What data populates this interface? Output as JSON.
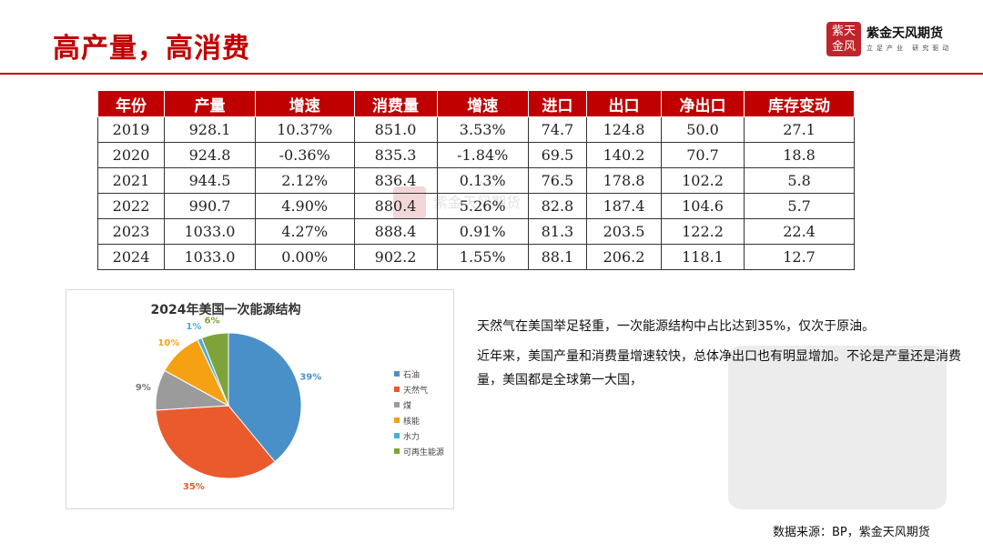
{
  "header": {
    "title": "高产量，高消费",
    "logo_name": "紫金天风期货",
    "logo_seal_text": "紫天金风",
    "logo_tagline": "立足产业 研究驱动",
    "accent_color": "#c00000"
  },
  "table": {
    "headers": [
      "年份",
      "产量",
      "增速",
      "消费量",
      "增速",
      "进口",
      "出口",
      "净出口",
      "库存变动"
    ],
    "rows": [
      [
        "2019",
        "928.1",
        "10.37%",
        "851.0",
        "3.53%",
        "74.7",
        "124.8",
        "50.0",
        "27.1"
      ],
      [
        "2020",
        "924.8",
        "-0.36%",
        "835.3",
        "-1.84%",
        "69.5",
        "140.2",
        "70.7",
        "18.8"
      ],
      [
        "2021",
        "944.5",
        "2.12%",
        "836.4",
        "0.13%",
        "76.5",
        "178.8",
        "102.2",
        "5.8"
      ],
      [
        "2022",
        "990.7",
        "4.90%",
        "880.4",
        "5.26%",
        "82.8",
        "187.4",
        "104.6",
        "5.7"
      ],
      [
        "2023",
        "1033.0",
        "4.27%",
        "888.4",
        "0.91%",
        "81.3",
        "203.5",
        "122.2",
        "22.4"
      ],
      [
        "2024",
        "1033.0",
        "0.00%",
        "902.2",
        "1.55%",
        "88.1",
        "206.2",
        "118.1",
        "12.7"
      ]
    ]
  },
  "chart_data": {
    "type": "pie",
    "title": "2024年美国一次能源结构",
    "categories": [
      "石油",
      "天然气",
      "煤",
      "核能",
      "水力",
      "可再生能源"
    ],
    "values": [
      39,
      35,
      9,
      10,
      1,
      6
    ],
    "labels": [
      "39%",
      "35%",
      "9%",
      "10%",
      "1%",
      "6%"
    ],
    "colors": [
      "#4a90c8",
      "#ea5a2c",
      "#9b9b9b",
      "#f5a113",
      "#4bacd8",
      "#7fa33a"
    ],
    "legend_position": "right"
  },
  "text": {
    "paragraph_1": "天然气在美国举足轻重，一次能源结构中占比达到35%，仅次于原油。",
    "paragraph_2": "近年来，美国产量和消费量增速较快，总体净出口也有明显增加。不论是产量还是消费量，美国都是全球第一大国，"
  },
  "footer": {
    "source": "数据来源：BP，紫金天风期货"
  }
}
